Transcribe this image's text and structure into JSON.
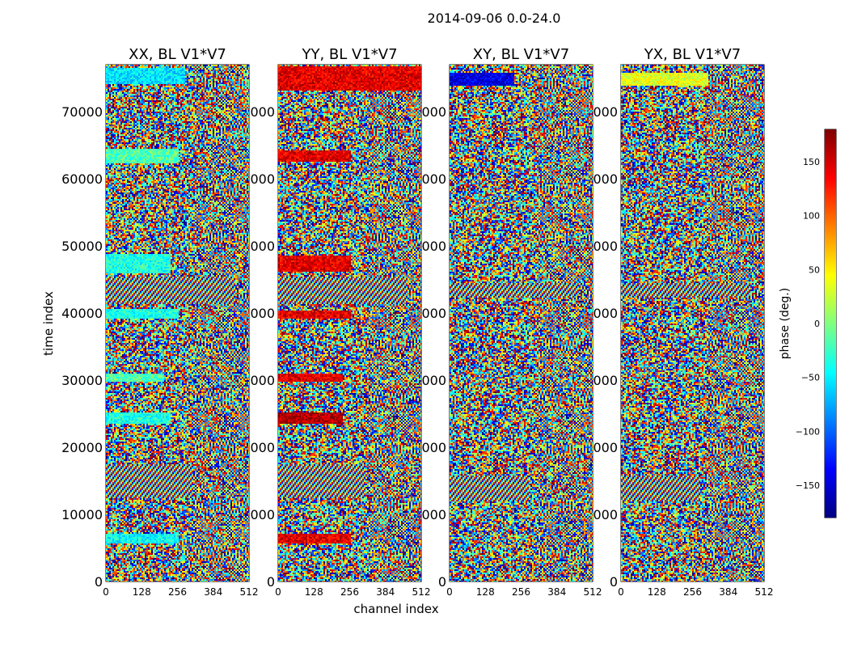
{
  "chart_data": {
    "type": "heatmap",
    "title": "2014-09-06 0.0-24.0",
    "xlabel": "channel index",
    "ylabel": "time index",
    "xlim": [
      0,
      512
    ],
    "ylim": [
      0,
      77000
    ],
    "x_ticks": [
      0,
      128,
      256,
      384,
      512
    ],
    "y_ticks": [
      0,
      10000,
      20000,
      30000,
      40000,
      50000,
      60000,
      70000
    ],
    "colormap": "jet",
    "panels": [
      {
        "title": "XX, BL V1*V7"
      },
      {
        "title": "YY, BL V1*V7"
      },
      {
        "title": "XY, BL V1*V7"
      },
      {
        "title": "YX, BL V1*V7"
      }
    ],
    "colorbar": {
      "label": "phase (deg.)",
      "range": [
        -180,
        180
      ],
      "ticks": [
        -150,
        -100,
        -50,
        0,
        50,
        100,
        150
      ]
    }
  }
}
